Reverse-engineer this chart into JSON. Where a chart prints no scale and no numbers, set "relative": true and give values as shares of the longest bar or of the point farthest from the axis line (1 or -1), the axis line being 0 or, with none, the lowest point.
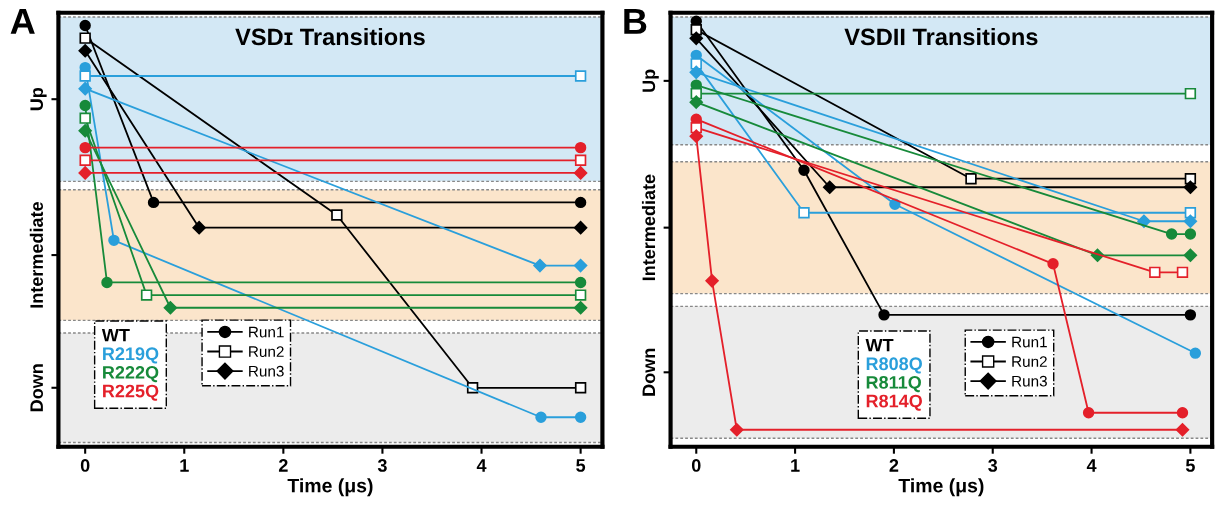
{
  "chart_data": [
    {
      "type": "line",
      "title": "VSDɪ Transitions",
      "xlabel": "Time (μs)",
      "relative": true,
      "xlim": [
        -0.27,
        5.22
      ],
      "xticks": [
        0,
        1,
        2,
        3,
        4,
        5
      ],
      "grid": false,
      "legend": "bottom left",
      "line_style": "solid",
      "annotations": [
        "A",
        "WT"
      ],
      "bands": [
        {
          "axis": "y",
          "from": 0.63,
          "to": 1.02,
          "label": "Up",
          "color": "#d3e8f5"
        },
        {
          "axis": "y",
          "from": 0.3,
          "to": 0.61,
          "label": "Intermediate",
          "color": "#fbe5cb"
        },
        {
          "axis": "y",
          "from": 0.01,
          "to": 0.27,
          "label": "Down",
          "color": "#ececec"
        }
      ],
      "series": [
        {
          "name": "Run1",
          "color": "#000000",
          "marker": "circle",
          "x": [
            0,
            0.69,
            5
          ],
          "values": [
            1.0,
            0.58,
            0.58
          ]
        },
        {
          "name": "Run2",
          "color": "#000000",
          "marker": "square",
          "x": [
            0,
            2.54,
            3.91,
            5
          ],
          "values": [
            0.97,
            0.55,
            0.14,
            0.14
          ]
        },
        {
          "name": "Run3",
          "color": "#000000",
          "marker": "diamond",
          "x": [
            0,
            1.15,
            5
          ],
          "values": [
            0.94,
            0.52,
            0.52
          ]
        },
        {
          "name": "R219Q",
          "color": "#2a9fdb",
          "marker": "circle",
          "x": [
            0,
            0.29,
            4.6,
            5
          ],
          "values": [
            0.9,
            0.49,
            0.07,
            0.07
          ]
        },
        {
          "color": "#2a9fdb",
          "marker": "square",
          "x": [
            0,
            5
          ],
          "values": [
            0.88,
            0.88
          ]
        },
        {
          "color": "#2a9fdb",
          "marker": "diamond",
          "x": [
            0,
            4.59,
            5
          ],
          "values": [
            0.85,
            0.43,
            0.43
          ]
        },
        {
          "name": "R222Q",
          "color": "#178a3a",
          "marker": "circle",
          "x": [
            0,
            0.22,
            5
          ],
          "values": [
            0.81,
            0.39,
            0.39
          ]
        },
        {
          "color": "#178a3a",
          "marker": "square",
          "x": [
            0,
            0.62,
            5
          ],
          "values": [
            0.78,
            0.36,
            0.36
          ]
        },
        {
          "color": "#178a3a",
          "marker": "diamond",
          "x": [
            0,
            0.86,
            5
          ],
          "values": [
            0.75,
            0.33,
            0.33
          ]
        },
        {
          "name": "R225Q",
          "color": "#e4202a",
          "marker": "circle",
          "x": [
            0,
            5
          ],
          "values": [
            0.71,
            0.71
          ]
        },
        {
          "color": "#e4202a",
          "marker": "square",
          "x": [
            0,
            5
          ],
          "values": [
            0.68,
            0.68
          ]
        },
        {
          "color": "#e4202a",
          "marker": "diamond",
          "x": [
            0,
            5
          ],
          "values": [
            0.65,
            0.65
          ]
        }
      ]
    },
    {
      "type": "line",
      "title": "VSDII Transitions",
      "xlabel": "Time (μs)",
      "relative": true,
      "xlim": [
        -0.26,
        5.22
      ],
      "xticks": [
        0,
        1,
        2,
        3,
        4,
        5
      ],
      "grid": false,
      "legend": "bottom",
      "line_style": "solid",
      "annotations": [
        "B",
        "WT"
      ],
      "bands": [
        {
          "axis": "y",
          "from": 0.71,
          "to": 1.01,
          "label": "Up",
          "color": "#d3e8f5"
        },
        {
          "axis": "y",
          "from": 0.36,
          "to": 0.67,
          "label": "Intermediate",
          "color": "#fbe5cb"
        },
        {
          "axis": "y",
          "from": 0.02,
          "to": 0.33,
          "label": "Down",
          "color": "#ececec"
        }
      ],
      "series": [
        {
          "name": "Run1",
          "color": "#000000",
          "marker": "circle",
          "x": [
            0,
            1.09,
            1.9,
            5
          ],
          "values": [
            1.0,
            0.65,
            0.31,
            0.31
          ]
        },
        {
          "name": "Run2",
          "color": "#000000",
          "marker": "square",
          "x": [
            0,
            2.78,
            5
          ],
          "values": [
            0.98,
            0.63,
            0.63
          ]
        },
        {
          "name": "Run3",
          "color": "#000000",
          "marker": "diamond",
          "x": [
            0,
            1.35,
            5
          ],
          "values": [
            0.96,
            0.61,
            0.61
          ]
        },
        {
          "name": "R808Q",
          "color": "#2a9fdb",
          "marker": "circle",
          "x": [
            0,
            2.01,
            5.05
          ],
          "values": [
            0.92,
            0.57,
            0.22
          ]
        },
        {
          "color": "#2a9fdb",
          "marker": "square",
          "x": [
            0,
            1.09,
            5
          ],
          "values": [
            0.9,
            0.55,
            0.55
          ]
        },
        {
          "color": "#2a9fdb",
          "marker": "diamond",
          "x": [
            0,
            4.53,
            5
          ],
          "values": [
            0.88,
            0.53,
            0.53
          ]
        },
        {
          "name": "R811Q",
          "color": "#178a3a",
          "marker": "circle",
          "x": [
            0,
            4.81,
            5
          ],
          "values": [
            0.85,
            0.5,
            0.5
          ]
        },
        {
          "color": "#178a3a",
          "marker": "square",
          "x": [
            0,
            5
          ],
          "values": [
            0.83,
            0.83
          ]
        },
        {
          "color": "#178a3a",
          "marker": "diamond",
          "x": [
            0,
            4.06,
            5
          ],
          "values": [
            0.81,
            0.45,
            0.45
          ]
        },
        {
          "name": "R814Q",
          "color": "#e4202a",
          "marker": "circle",
          "x": [
            0,
            3.61,
            3.97,
            4.92
          ],
          "values": [
            0.77,
            0.43,
            0.08,
            0.08
          ]
        },
        {
          "color": "#e4202a",
          "marker": "square",
          "x": [
            0,
            4.64,
            4.92
          ],
          "values": [
            0.75,
            0.41,
            0.41
          ]
        },
        {
          "color": "#e4202a",
          "marker": "diamond",
          "x": [
            0,
            0.16,
            0.41,
            4.92
          ],
          "values": [
            0.73,
            0.39,
            0.04,
            0.04
          ]
        }
      ]
    }
  ]
}
